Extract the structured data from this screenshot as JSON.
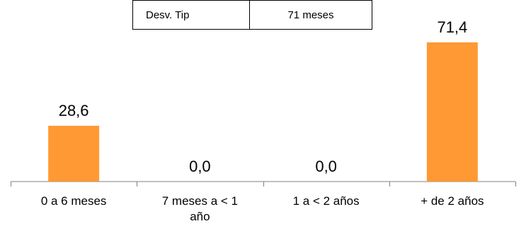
{
  "stats_table": {
    "label": "Desv. Tip",
    "value": "71 meses"
  },
  "colors": {
    "bar": "#FF9933",
    "axis": "#808080",
    "text": "#000000"
  },
  "chart_data": {
    "type": "bar",
    "categories": [
      "0 a 6 meses",
      "7 meses a < 1 año",
      "1 a < 2 años",
      "+ de 2 años"
    ],
    "category_lines": [
      [
        "0 a 6 meses"
      ],
      [
        "7 meses a < 1",
        "año"
      ],
      [
        "1 a < 2 años"
      ],
      [
        "+ de 2 años"
      ]
    ],
    "values": [
      28.6,
      0.0,
      0.0,
      71.4
    ],
    "data_labels": [
      "28,6",
      "0,0",
      "0,0",
      "71,4"
    ],
    "title": "",
    "xlabel": "",
    "ylabel": "",
    "ylim": [
      0,
      71.4
    ],
    "grid": false,
    "legend": "none"
  }
}
